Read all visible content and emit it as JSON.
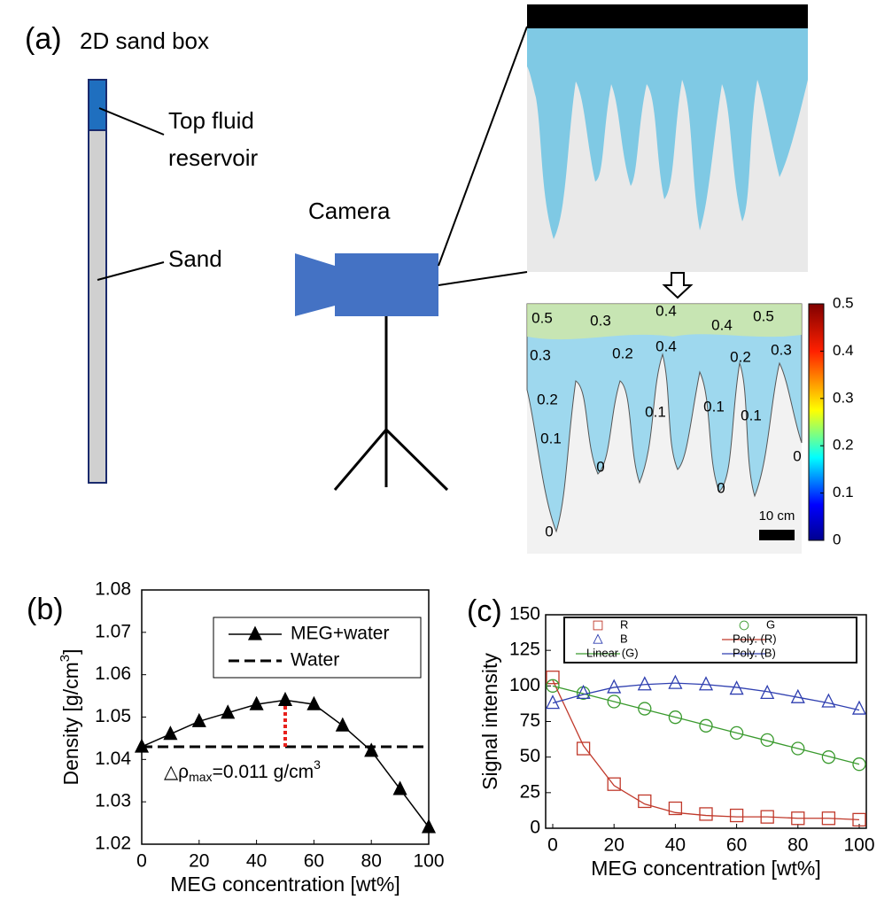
{
  "panel_a": {
    "label": "(a)",
    "title": "2D sand box",
    "reservoir_1": "Top fluid",
    "reservoir_2": "reservoir",
    "sand": "Sand",
    "camera": "Camera",
    "contours": [
      "0.5",
      "0.3",
      "0.4",
      "0.4",
      "0.5",
      "0.3",
      "0.2",
      "0.4",
      "0.2",
      "0.3",
      "0.2",
      "0.1",
      "0.1",
      "0.1",
      "0.1",
      "0",
      "0",
      "0",
      "0"
    ],
    "colorbar": {
      "lim": [
        0,
        0.5
      ],
      "ticks": [
        0,
        0.1,
        0.2,
        0.3,
        0.4,
        0.5
      ]
    },
    "scale_bar": "10 cm"
  },
  "chart_data": [
    {
      "type": "line",
      "panel": "(b)",
      "xlabel": "MEG  concentration  [wt%]",
      "ylabel": "Density  [g/cm",
      "ylabel_sup": "3",
      "ylabel_end": "]",
      "xlim": [
        0,
        100
      ],
      "xticks": [
        0,
        20,
        40,
        60,
        80,
        100
      ],
      "ylim": [
        1.02,
        1.08
      ],
      "yticks": [
        1.02,
        1.03,
        1.04,
        1.05,
        1.06,
        1.07,
        1.08
      ],
      "series": [
        {
          "name": "MEG+water",
          "color": "#000000",
          "marker": "triangle",
          "x": [
            0,
            10,
            20,
            30,
            40,
            50,
            60,
            70,
            80,
            90,
            100
          ],
          "values": [
            1.043,
            1.046,
            1.049,
            1.051,
            1.053,
            1.054,
            1.053,
            1.048,
            1.042,
            1.033,
            1.024
          ]
        },
        {
          "name": "Water",
          "color": "#000000",
          "dash": true,
          "x": [
            0,
            100
          ],
          "values": [
            1.043,
            1.043
          ]
        }
      ],
      "annotation": {
        "text": "△ρ",
        "sub": "max",
        "rest": "=0.011 g/cm",
        "sup": "3",
        "color": "#e8201c"
      }
    },
    {
      "type": "scatter",
      "panel": "(c)",
      "xlabel": "MEG concentration  [wt%]",
      "ylabel": "Signal intensity",
      "xlim": [
        0,
        100
      ],
      "xticks": [
        0,
        20,
        40,
        60,
        80,
        100
      ],
      "ylim": [
        0,
        150
      ],
      "yticks": [
        0,
        25,
        50,
        75,
        100,
        125,
        150
      ],
      "x": [
        0,
        10,
        20,
        30,
        40,
        50,
        60,
        70,
        80,
        90,
        100
      ],
      "series": [
        {
          "name": "R",
          "color": "#c0392b",
          "marker": "square",
          "values": [
            106,
            56,
            31,
            19,
            14,
            10,
            9,
            8,
            7,
            7,
            6
          ]
        },
        {
          "name": "G",
          "color": "#3a9a2e",
          "marker": "circle",
          "values": [
            100,
            95,
            89,
            84,
            78,
            72,
            67,
            62,
            56,
            50,
            45
          ]
        },
        {
          "name": "B",
          "color": "#2f3fb0",
          "marker": "triangle",
          "values": [
            88,
            95,
            99,
            101,
            102,
            101,
            98,
            95,
            92,
            89,
            84
          ]
        },
        {
          "name": "Poly. (R)",
          "color": "#c0392b",
          "values": [
            104,
            58,
            30,
            17,
            11,
            9,
            8,
            8,
            7,
            7,
            6
          ]
        },
        {
          "name": "Linear (G)",
          "color": "#3a9a2e",
          "values": [
            100,
            94.5,
            89,
            83.5,
            78,
            72.5,
            67,
            61.5,
            56,
            50.5,
            45
          ]
        },
        {
          "name": "Poly. (B)",
          "color": "#2f3fb0",
          "values": [
            88,
            94,
            99,
            101,
            102,
            101,
            99,
            96,
            92,
            88,
            83
          ]
        }
      ]
    }
  ]
}
